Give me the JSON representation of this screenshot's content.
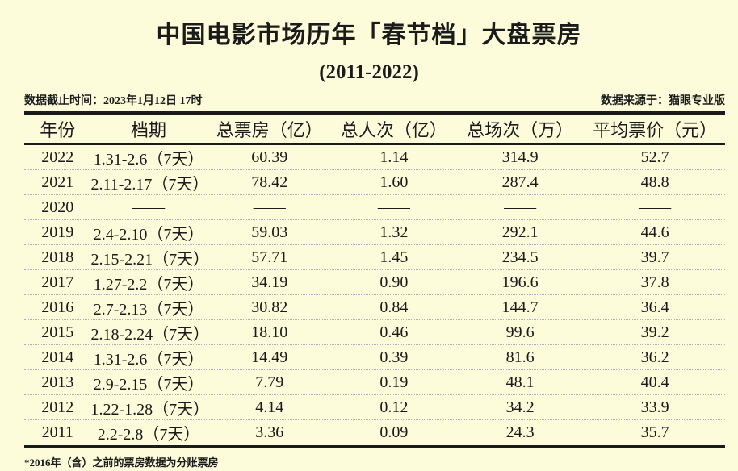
{
  "title": "中国电影市场历年「春节档」大盘票房",
  "subtitle": "(2011-2022)",
  "meta": {
    "cutoff": "数据截止时间：2023年1月12日 17时",
    "source": "数据来源于：猫眼专业版"
  },
  "table": {
    "headers": [
      "年份",
      "档期",
      "总票房（亿）",
      "总人次（亿）",
      "总场次（万）",
      "平均票价（元）"
    ],
    "rows": [
      [
        "2022",
        "1.31-2.6（7天）",
        "60.39",
        "1.14",
        "314.9",
        "52.7"
      ],
      [
        "2021",
        "2.11-2.17（7天）",
        "78.42",
        "1.60",
        "287.4",
        "48.8"
      ],
      [
        "2020",
        "——",
        "——",
        "——",
        "——",
        "——"
      ],
      [
        "2019",
        "2.4-2.10（7天）",
        "59.03",
        "1.32",
        "292.1",
        "44.6"
      ],
      [
        "2018",
        "2.15-2.21（7天）",
        "57.71",
        "1.45",
        "234.5",
        "39.7"
      ],
      [
        "2017",
        "1.27-2.2（7天）",
        "34.19",
        "0.90",
        "196.6",
        "37.8"
      ],
      [
        "2016",
        "2.7-2.13（7天）",
        "30.82",
        "0.84",
        "144.7",
        "36.4"
      ],
      [
        "2015",
        "2.18-2.24（7天）",
        "18.10",
        "0.46",
        "99.6",
        "39.2"
      ],
      [
        "2014",
        "1.31-2.6（7天）",
        "14.49",
        "0.39",
        "81.6",
        "36.2"
      ],
      [
        "2013",
        "2.9-2.15（7天）",
        "7.79",
        "0.19",
        "48.1",
        "40.4"
      ],
      [
        "2012",
        "1.22-1.28（7天）",
        "4.14",
        "0.12",
        "34.2",
        "33.9"
      ],
      [
        "2011",
        "2.2-2.8（7天）",
        "3.36",
        "0.09",
        "24.3",
        "35.7"
      ]
    ]
  },
  "footnote": "*2016年（含）之前的票房数据为分账票房",
  "colors": {
    "background": "#FCFCDA",
    "text": "#1b1b1b",
    "divider": "#a9aec0"
  },
  "chart_data": {
    "type": "table",
    "title": "中国电影市场历年「春节档」大盘票房 (2011-2022)",
    "columns": [
      "年份",
      "档期",
      "总票房（亿）",
      "总人次（亿）",
      "总场次（万）",
      "平均票价（元）"
    ],
    "categories": [
      "2022",
      "2021",
      "2020",
      "2019",
      "2018",
      "2017",
      "2016",
      "2015",
      "2014",
      "2013",
      "2012",
      "2011"
    ],
    "periods": [
      "1.31-2.6（7天）",
      "2.11-2.17（7天）",
      null,
      "2.4-2.10（7天）",
      "2.15-2.21（7天）",
      "1.27-2.2（7天）",
      "2.7-2.13（7天）",
      "2.18-2.24（7天）",
      "1.31-2.6（7天）",
      "2.9-2.15（7天）",
      "1.22-1.28（7天）",
      "2.2-2.8（7天）"
    ],
    "series": [
      {
        "name": "总票房（亿）",
        "values": [
          60.39,
          78.42,
          null,
          59.03,
          57.71,
          34.19,
          30.82,
          18.1,
          14.49,
          7.79,
          4.14,
          3.36
        ]
      },
      {
        "name": "总人次（亿）",
        "values": [
          1.14,
          1.6,
          null,
          1.32,
          1.45,
          0.9,
          0.84,
          0.46,
          0.39,
          0.19,
          0.12,
          0.09
        ]
      },
      {
        "name": "总场次（万）",
        "values": [
          314.9,
          287.4,
          null,
          292.1,
          234.5,
          196.6,
          144.7,
          99.6,
          81.6,
          48.1,
          34.2,
          24.3
        ]
      },
      {
        "name": "平均票价（元）",
        "values": [
          52.7,
          48.8,
          null,
          44.6,
          39.7,
          37.8,
          36.4,
          39.2,
          36.2,
          40.4,
          33.9,
          35.7
        ]
      }
    ],
    "notes": [
      "数据截止时间：2023年1月12日 17时",
      "数据来源于：猫眼专业版",
      "*2016年（含）之前的票房数据为分账票房"
    ]
  }
}
